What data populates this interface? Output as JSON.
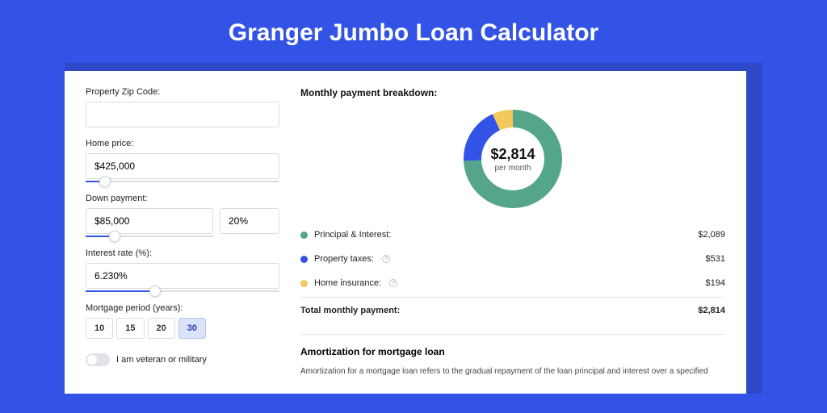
{
  "colors": {
    "page_bg": "#3253e6",
    "outer_bg": "#2d49c8",
    "card_bg": "#ffffff",
    "border": "#d9dce3",
    "slider_fill": "#3253e6"
  },
  "header": {
    "title": "Granger Jumbo Loan Calculator"
  },
  "form": {
    "zip": {
      "label": "Property Zip Code:",
      "value": ""
    },
    "home_price": {
      "label": "Home price:",
      "value": "$425,000",
      "slider_pos_pct": 10
    },
    "down_payment": {
      "label": "Down payment:",
      "amount": "$85,000",
      "percent": "20%",
      "slider_pos_pct": 23
    },
    "interest_rate": {
      "label": "Interest rate (%):",
      "value": "6.230%",
      "slider_pos_pct": 36
    },
    "period": {
      "label": "Mortgage period (years):",
      "options": [
        "10",
        "15",
        "20",
        "30"
      ],
      "selected": "30"
    },
    "veteran": {
      "label": "I am veteran or military",
      "on": false
    }
  },
  "breakdown": {
    "title": "Monthly payment breakdown:",
    "center_value": "$2,814",
    "center_sub": "per month",
    "items": [
      {
        "label": "Principal & Interest:",
        "value": "$2,089",
        "color": "#54a58a",
        "fraction": 0.742,
        "info": false
      },
      {
        "label": "Property taxes:",
        "value": "$531",
        "color": "#3253e6",
        "fraction": 0.189,
        "info": true
      },
      {
        "label": "Home insurance:",
        "value": "$194",
        "color": "#f3c95b",
        "fraction": 0.069,
        "info": true
      }
    ],
    "total": {
      "label": "Total monthly payment:",
      "value": "$2,814"
    }
  },
  "amortization": {
    "title": "Amortization for mortgage loan",
    "text": "Amortization for a mortgage loan refers to the gradual repayment of the loan principal and interest over a specified"
  },
  "donut": {
    "radius": 50,
    "stroke": 22
  }
}
